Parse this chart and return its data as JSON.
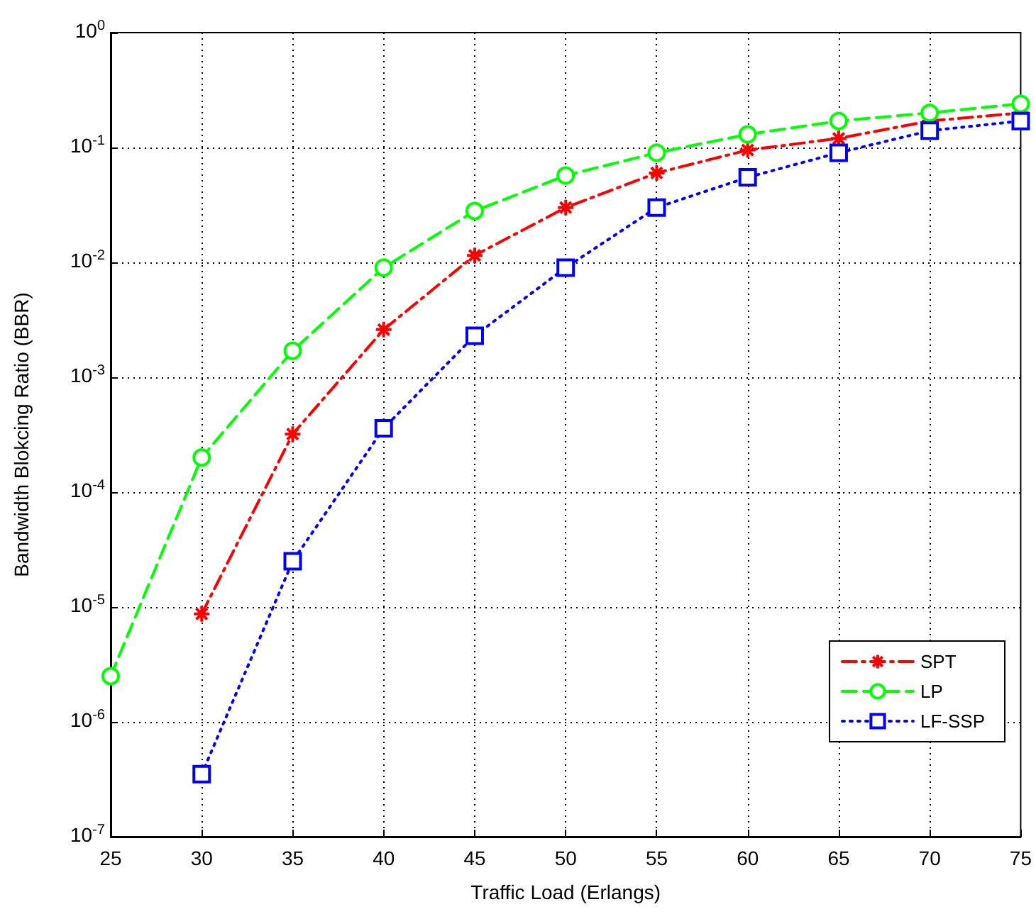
{
  "chart_data": {
    "type": "line",
    "xlabel": "Traffic Load (Erlangs)",
    "ylabel": "Bandwidth Blokcing Ratio (BBR)",
    "x": [
      30,
      35,
      40,
      45,
      50,
      55,
      60,
      65,
      70,
      75
    ],
    "series": [
      {
        "name": "SPT",
        "color": "#ff0000",
        "marker": "cross",
        "line_style": "dashdot",
        "values": [
          8.7e-06,
          0.00032,
          0.0026,
          0.0115,
          0.03,
          0.06,
          0.095,
          0.12,
          0.17,
          0.2
        ]
      },
      {
        "name": "LP",
        "color": "#00ff00",
        "marker": "circle",
        "line_style": "dashed",
        "x": [
          25,
          30,
          35,
          40,
          45,
          50,
          55,
          60,
          65,
          70,
          75
        ],
        "values": [
          2.5e-06,
          0.0002,
          0.0017,
          0.009,
          0.028,
          0.057,
          0.09,
          0.13,
          0.17,
          0.2,
          0.24
        ]
      },
      {
        "name": "LF-SSP",
        "color": "#0000ff",
        "marker": "square",
        "line_style": "dotted",
        "values": [
          3.5e-07,
          2.5e-05,
          0.00036,
          0.0023,
          0.009,
          0.03,
          0.055,
          0.09,
          0.14,
          0.17
        ]
      }
    ],
    "xlim": [
      25,
      75
    ],
    "xticks": [
      25,
      30,
      35,
      40,
      45,
      50,
      55,
      60,
      65,
      70,
      75
    ],
    "ylim": [
      1e-07,
      1
    ],
    "log": "y",
    "yticks": [
      {
        "value": 1e-07,
        "label": "10$^{-7}$"
      },
      {
        "value": 1e-06,
        "label": "10$^{-6}$"
      },
      {
        "value": 1e-05,
        "label": "10$^{-5}$"
      },
      {
        "value": 0.0001,
        "label": "10$^{-4}$"
      },
      {
        "value": 0.001,
        "label": "10$^{-3}$"
      },
      {
        "value": 0.01,
        "label": "10$^{-2}$"
      },
      {
        "value": 0.1,
        "label": "10$^{-1}$"
      },
      {
        "value": 1,
        "label": "10$^{0}$"
      }
    ],
    "grid": true,
    "legend": "bottom right"
  }
}
